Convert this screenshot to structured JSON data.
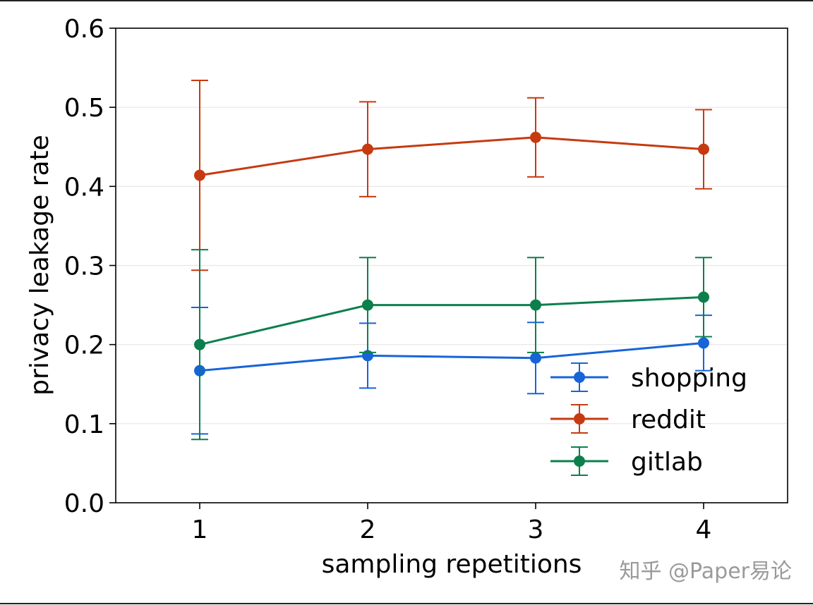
{
  "chart_data": {
    "type": "line",
    "title": "",
    "xlabel": "sampling repetitions",
    "ylabel": "privacy leakage rate",
    "x": [
      1,
      2,
      3,
      4
    ],
    "xticks": [
      "1",
      "2",
      "3",
      "4"
    ],
    "xlim": [
      0.5,
      4.5
    ],
    "ylim": [
      0.0,
      0.6
    ],
    "yticks": [
      "0.0",
      "0.1",
      "0.2",
      "0.3",
      "0.4",
      "0.5",
      "0.6"
    ],
    "grid": "horizontal",
    "legend_position": "lower-right",
    "series": [
      {
        "name": "shopping",
        "color": "#1764d8",
        "values": [
          0.167,
          0.186,
          0.183,
          0.202
        ],
        "err_low": [
          0.087,
          0.145,
          0.138,
          0.167
        ],
        "err_high": [
          0.247,
          0.227,
          0.228,
          0.237
        ]
      },
      {
        "name": "reddit",
        "color": "#c63a12",
        "values": [
          0.414,
          0.447,
          0.462,
          0.447
        ],
        "err_low": [
          0.294,
          0.387,
          0.412,
          0.397
        ],
        "err_high": [
          0.534,
          0.507,
          0.512,
          0.497
        ]
      },
      {
        "name": "gitlab",
        "color": "#0d7f4d",
        "values": [
          0.2,
          0.25,
          0.25,
          0.26
        ],
        "err_low": [
          0.08,
          0.19,
          0.19,
          0.21
        ],
        "err_high": [
          0.32,
          0.31,
          0.31,
          0.31
        ]
      }
    ]
  },
  "watermark": "知乎 @Paper易论"
}
